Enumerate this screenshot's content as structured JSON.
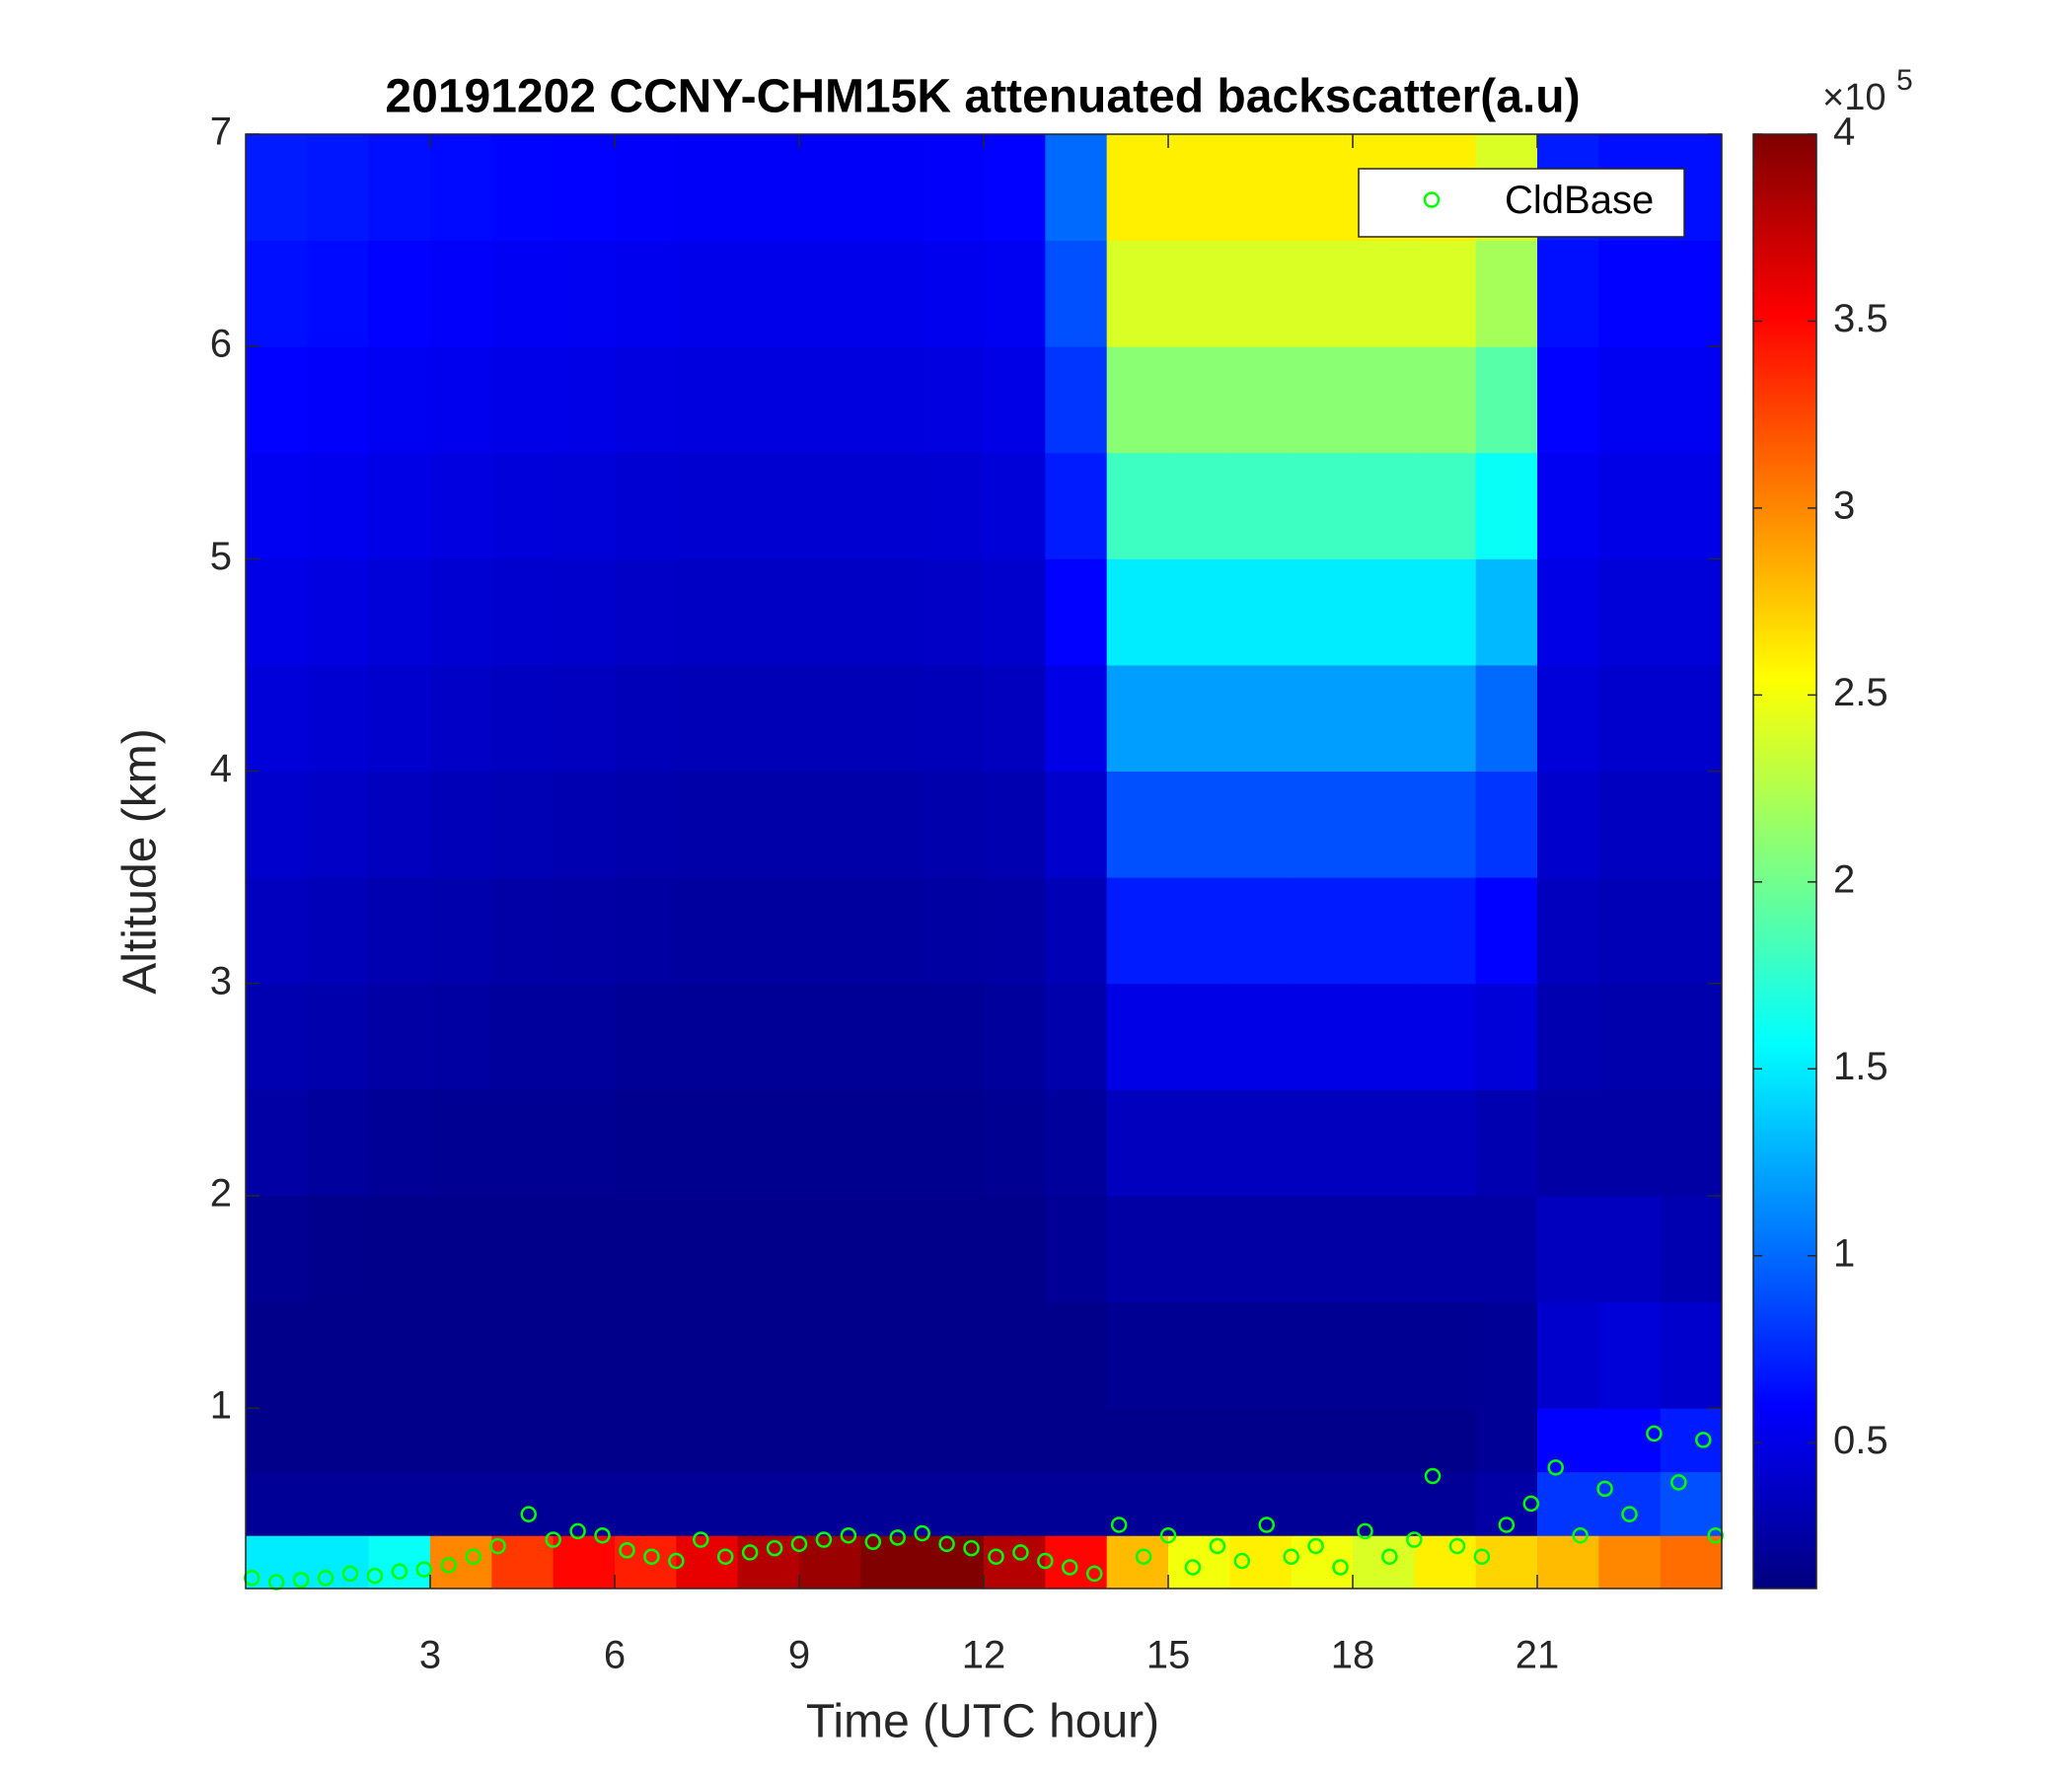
{
  "chart_data": {
    "type": "heatmap",
    "title": "20191202 CCNY-CHM15K attenuated backscatter(a.u)",
    "x_label": "Time (UTC hour)",
    "y_label": "Altitude (km)",
    "xlim": [
      0,
      24
    ],
    "ylim": [
      0.15,
      7
    ],
    "xticks": [
      3,
      6,
      9,
      12,
      15,
      18,
      21
    ],
    "yticks": [
      1,
      2,
      3,
      4,
      5,
      6,
      7
    ],
    "colormap": "jet",
    "clim": [
      0.11,
      4
    ],
    "cticks": [
      0.5,
      1,
      1.5,
      2,
      2.5,
      3,
      3.5,
      4
    ],
    "colorbar_multiplier": {
      "base": "×10",
      "exponent": "5"
    },
    "x_bins": [
      0,
      1,
      2,
      3,
      4,
      5,
      6,
      7,
      8,
      9,
      10,
      11,
      12,
      13,
      14,
      15,
      16,
      17,
      18,
      19,
      20,
      21,
      22,
      23,
      24
    ],
    "y_bins": [
      0.15,
      0.4,
      0.7,
      1,
      1.5,
      2,
      2.5,
      3,
      3.5,
      4,
      4.5,
      5,
      5.5,
      6,
      6.5,
      7
    ],
    "z": [
      [
        1.5,
        1.5,
        1.6,
        3.0,
        3.3,
        3.5,
        3.4,
        3.6,
        3.8,
        3.9,
        4,
        4,
        3.8,
        3.5,
        2.8,
        2.5,
        2.6,
        2.5,
        2.4,
        2.6,
        2.7,
        2.8,
        3.0,
        3.1
      ],
      [
        0.2,
        0.2,
        0.2,
        0.2,
        0.2,
        0.2,
        0.2,
        0.2,
        0.2,
        0.2,
        0.2,
        0.2,
        0.2,
        0.2,
        0.2,
        0.2,
        0.2,
        0.2,
        0.2,
        0.2,
        0.25,
        0.8,
        0.8,
        0.9
      ],
      [
        0.15,
        0.15,
        0.15,
        0.15,
        0.15,
        0.15,
        0.15,
        0.15,
        0.15,
        0.15,
        0.15,
        0.15,
        0.15,
        0.15,
        0.15,
        0.15,
        0.15,
        0.15,
        0.15,
        0.15,
        0.2,
        0.6,
        0.6,
        0.7
      ],
      [
        0.15,
        0.15,
        0.15,
        0.15,
        0.15,
        0.15,
        0.15,
        0.15,
        0.15,
        0.15,
        0.15,
        0.15,
        0.15,
        0.15,
        0.18,
        0.18,
        0.18,
        0.18,
        0.18,
        0.18,
        0.2,
        0.4,
        0.45,
        0.4
      ],
      [
        0.18,
        0.16,
        0.15,
        0.15,
        0.15,
        0.15,
        0.15,
        0.15,
        0.15,
        0.15,
        0.15,
        0.15,
        0.15,
        0.2,
        0.25,
        0.25,
        0.25,
        0.25,
        0.25,
        0.25,
        0.25,
        0.35,
        0.35,
        0.3
      ],
      [
        0.25,
        0.22,
        0.2,
        0.18,
        0.18,
        0.18,
        0.17,
        0.17,
        0.17,
        0.17,
        0.17,
        0.17,
        0.18,
        0.22,
        0.35,
        0.35,
        0.35,
        0.35,
        0.35,
        0.35,
        0.3,
        0.25,
        0.25,
        0.25
      ],
      [
        0.3,
        0.28,
        0.25,
        0.24,
        0.22,
        0.22,
        0.2,
        0.2,
        0.2,
        0.2,
        0.2,
        0.2,
        0.22,
        0.28,
        0.5,
        0.5,
        0.5,
        0.5,
        0.5,
        0.5,
        0.45,
        0.3,
        0.28,
        0.28
      ],
      [
        0.35,
        0.33,
        0.3,
        0.28,
        0.26,
        0.25,
        0.24,
        0.23,
        0.23,
        0.23,
        0.23,
        0.24,
        0.25,
        0.32,
        0.7,
        0.7,
        0.7,
        0.7,
        0.7,
        0.7,
        0.6,
        0.35,
        0.32,
        0.32
      ],
      [
        0.4,
        0.38,
        0.35,
        0.33,
        0.31,
        0.3,
        0.28,
        0.27,
        0.27,
        0.27,
        0.27,
        0.28,
        0.3,
        0.4,
        0.9,
        0.9,
        0.9,
        0.9,
        0.9,
        0.9,
        0.8,
        0.4,
        0.36,
        0.36
      ],
      [
        0.45,
        0.43,
        0.4,
        0.38,
        0.36,
        0.35,
        0.33,
        0.32,
        0.32,
        0.32,
        0.32,
        0.33,
        0.35,
        0.5,
        1.2,
        1.2,
        1.2,
        1.2,
        1.2,
        1.2,
        1.0,
        0.45,
        0.4,
        0.4
      ],
      [
        0.5,
        0.48,
        0.45,
        0.43,
        0.41,
        0.4,
        0.38,
        0.37,
        0.37,
        0.37,
        0.37,
        0.38,
        0.4,
        0.6,
        1.5,
        1.5,
        1.5,
        1.5,
        1.5,
        1.5,
        1.3,
        0.5,
        0.45,
        0.45
      ],
      [
        0.55,
        0.53,
        0.5,
        0.48,
        0.46,
        0.45,
        0.43,
        0.42,
        0.42,
        0.42,
        0.42,
        0.43,
        0.45,
        0.7,
        1.8,
        1.8,
        1.8,
        1.8,
        1.8,
        1.8,
        1.6,
        0.55,
        0.5,
        0.5
      ],
      [
        0.6,
        0.58,
        0.55,
        0.53,
        0.51,
        0.5,
        0.48,
        0.47,
        0.47,
        0.47,
        0.47,
        0.48,
        0.5,
        0.8,
        2.1,
        2.1,
        2.1,
        2.1,
        2.1,
        2.1,
        1.9,
        0.6,
        0.55,
        0.55
      ],
      [
        0.65,
        0.63,
        0.6,
        0.58,
        0.56,
        0.55,
        0.53,
        0.52,
        0.52,
        0.52,
        0.52,
        0.53,
        0.55,
        0.9,
        2.4,
        2.4,
        2.4,
        2.4,
        2.4,
        2.4,
        2.2,
        0.65,
        0.6,
        0.6
      ],
      [
        0.7,
        0.68,
        0.65,
        0.63,
        0.61,
        0.6,
        0.58,
        0.57,
        0.57,
        0.57,
        0.57,
        0.58,
        0.6,
        1.0,
        2.6,
        2.6,
        2.6,
        2.6,
        2.6,
        2.6,
        2.4,
        0.7,
        0.65,
        0.65
      ]
    ],
    "legend": "upper right",
    "series": [
      {
        "name": "CldBase",
        "color": "#00ff00",
        "x": [
          0.1,
          0.5,
          0.9,
          1.3,
          1.7,
          2.1,
          2.5,
          2.9,
          3.3,
          3.7,
          4.1,
          4.6,
          5.0,
          5.4,
          5.8,
          6.2,
          6.6,
          7.0,
          7.4,
          7.8,
          8.2,
          8.6,
          9.0,
          9.4,
          9.8,
          10.2,
          10.6,
          11.0,
          11.4,
          11.8,
          12.2,
          12.6,
          13.0,
          13.4,
          13.8,
          14.2,
          14.6,
          15.0,
          15.4,
          15.8,
          16.2,
          16.6,
          17.0,
          17.4,
          17.8,
          18.2,
          18.6,
          19.0,
          19.3,
          19.7,
          20.1,
          20.5,
          20.9,
          21.3,
          21.7,
          22.1,
          22.5,
          22.9,
          23.3,
          23.7,
          23.9
        ],
        "values": [
          0.2,
          0.18,
          0.19,
          0.2,
          0.22,
          0.21,
          0.23,
          0.24,
          0.26,
          0.3,
          0.35,
          0.5,
          0.38,
          0.42,
          0.4,
          0.33,
          0.3,
          0.28,
          0.38,
          0.3,
          0.32,
          0.34,
          0.36,
          0.38,
          0.4,
          0.37,
          0.39,
          0.41,
          0.36,
          0.34,
          0.3,
          0.32,
          0.28,
          0.25,
          0.22,
          0.45,
          0.3,
          0.4,
          0.25,
          0.35,
          0.28,
          0.45,
          0.3,
          0.35,
          0.25,
          0.42,
          0.3,
          0.38,
          0.68,
          0.35,
          0.3,
          0.45,
          0.55,
          0.72,
          0.4,
          0.62,
          0.5,
          0.88,
          0.65,
          0.85,
          0.4
        ]
      }
    ]
  }
}
